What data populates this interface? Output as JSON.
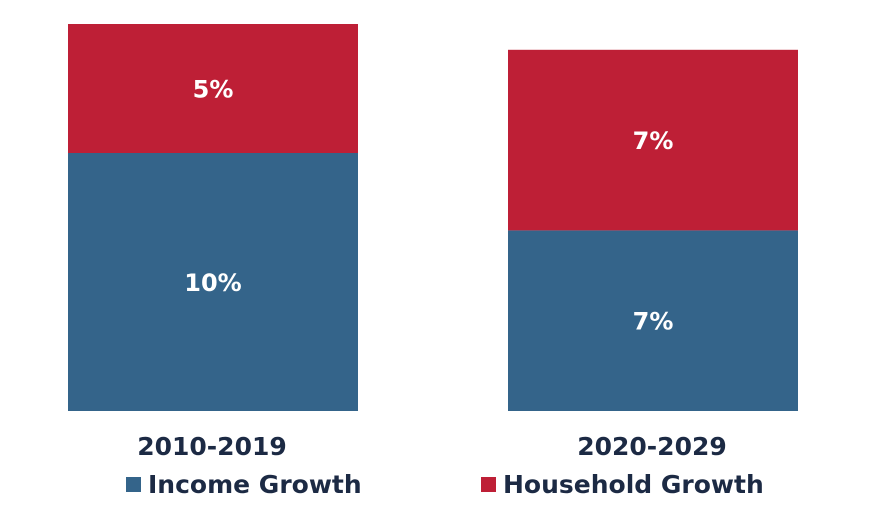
{
  "chart_data": {
    "type": "bar",
    "stacked": true,
    "categories": [
      "2010-2019",
      "2020-2029"
    ],
    "series": [
      {
        "name": "Income Growth",
        "values": [
          10,
          7
        ],
        "labels": [
          "10%",
          "7%"
        ],
        "color": "#34648a"
      },
      {
        "name": "Household Growth",
        "values": [
          5,
          7
        ],
        "labels": [
          "5%",
          "7%"
        ],
        "color": "#be1f36"
      }
    ],
    "title": "",
    "xlabel": "",
    "ylabel": "",
    "ylim": [
      0,
      15
    ],
    "grid": false,
    "legend_position": "bottom"
  },
  "colors": {
    "income": "#34648a",
    "household": "#be1f36",
    "category_text": "#1c2a44",
    "value_text": "#ffffff"
  }
}
